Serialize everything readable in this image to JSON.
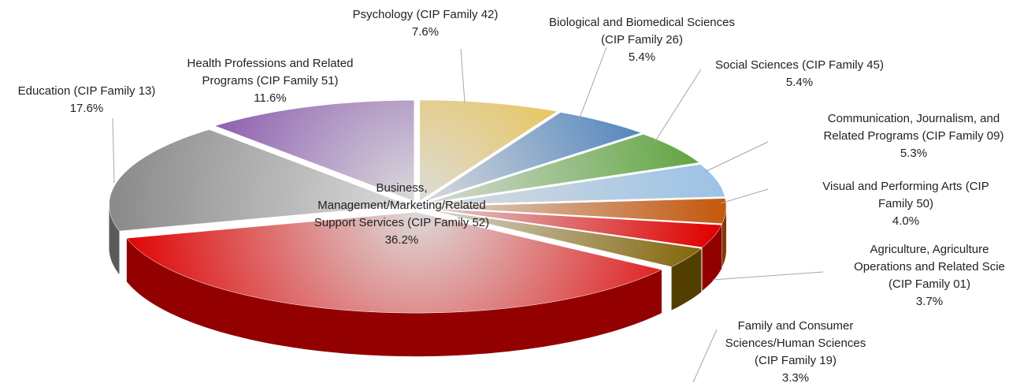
{
  "chart_data": {
    "type": "pie",
    "categories": [
      "Psychology (CIP Family 42)",
      "Biological and Biomedical Sciences (CIP Family 26)",
      "Social Sciences (CIP Family 45)",
      "Communication, Journalism, and Related Programs (CIP Family 09)",
      "Visual and Performing Arts (CIP Family 50)",
      "Agriculture, Agriculture Operations and Related Scie (CIP Family 01)",
      "Family and Consumer Sciences/Human Sciences (CIP Family 19)",
      "Business, Management/Marketing/Related Support Services (CIP Family 52)",
      "Education (CIP Family 13)",
      "Health Professions and Related Programs (CIP Family 51)"
    ],
    "values": [
      7.6,
      5.4,
      5.4,
      5.3,
      4.0,
      3.7,
      3.3,
      36.2,
      17.6,
      11.6
    ],
    "value_labels": [
      "7.6%",
      "5.4%",
      "5.4%",
      "5.3%",
      "4.0%",
      "3.7%",
      "3.3%",
      "36.2%",
      "17.6%",
      "11.6%"
    ],
    "colors": [
      "#f0b400",
      "#2e6fb5",
      "#5aa33a",
      "#9dc3e6",
      "#c55a11",
      "#e00000",
      "#7f6000",
      "#e00000",
      "#8c8c8c",
      "#7030a0"
    ]
  }
}
